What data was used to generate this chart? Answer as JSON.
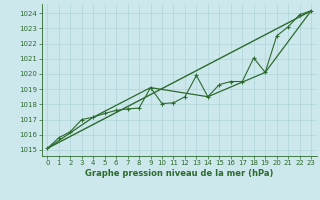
{
  "title": "Graphe pression niveau de la mer (hPa)",
  "bg_color": "#cce8ec",
  "line_color": "#2d6a2d",
  "xlim": [
    -0.5,
    23.5
  ],
  "ylim": [
    1014.6,
    1024.6
  ],
  "yticks": [
    1015,
    1016,
    1017,
    1018,
    1019,
    1020,
    1021,
    1022,
    1023,
    1024
  ],
  "xticks": [
    0,
    1,
    2,
    3,
    4,
    5,
    6,
    7,
    8,
    9,
    10,
    11,
    12,
    13,
    14,
    15,
    16,
    17,
    18,
    19,
    20,
    21,
    22,
    23
  ],
  "series_detail": {
    "x": [
      0,
      1,
      2,
      3,
      4,
      5,
      6,
      7,
      8,
      9,
      10,
      11,
      12,
      13,
      14,
      15,
      16,
      17,
      18,
      19,
      20,
      21,
      22,
      23
    ],
    "y": [
      1015.1,
      1015.8,
      1016.2,
      1017.0,
      1017.15,
      1017.4,
      1017.6,
      1017.7,
      1017.75,
      1019.1,
      1018.05,
      1018.1,
      1018.5,
      1019.9,
      1018.5,
      1019.3,
      1019.5,
      1019.5,
      1021.05,
      1020.1,
      1022.5,
      1023.1,
      1023.9,
      1024.15
    ]
  },
  "series_segment": {
    "x": [
      0,
      4,
      9,
      14,
      19,
      23
    ],
    "y": [
      1015.1,
      1017.15,
      1019.1,
      1018.5,
      1020.1,
      1024.15
    ]
  },
  "series_linear": {
    "x": [
      0,
      23
    ],
    "y": [
      1015.1,
      1024.15
    ]
  },
  "grid_color": "#afd4d8",
  "tick_color": "#2d6a2d",
  "title_fontsize": 6.0,
  "tick_fontsize": 5.0
}
